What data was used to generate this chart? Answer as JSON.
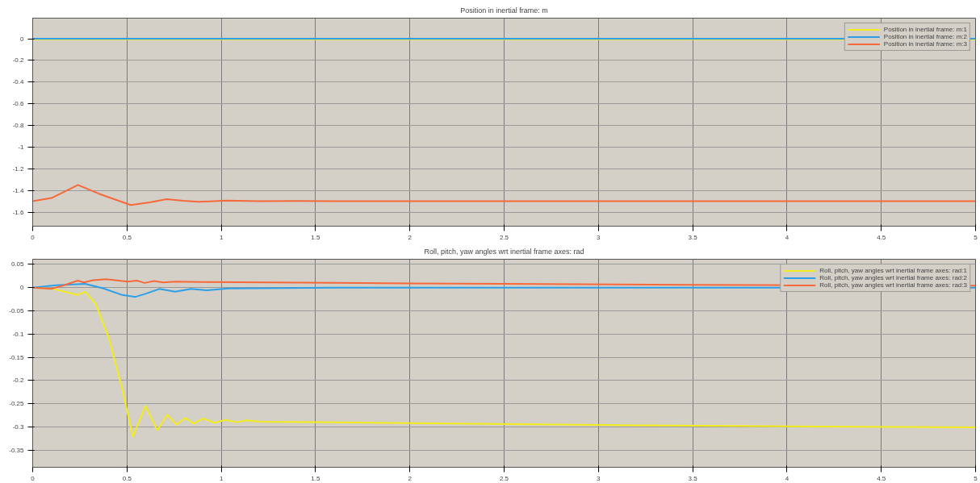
{
  "chart_data": [
    {
      "type": "line",
      "title": "Position in inertial frame: m",
      "xlim": [
        0,
        5
      ],
      "ylim": [
        -1.73,
        0.19
      ],
      "xticks": [
        0,
        0.5,
        1,
        1.5,
        2,
        2.5,
        3,
        3.5,
        4,
        4.5,
        5
      ],
      "yticks": [
        0,
        -0.2,
        -0.4,
        -0.6,
        -0.8,
        -1,
        -1.2,
        -1.4,
        -1.6
      ],
      "grid": true,
      "legend": "top right",
      "series": [
        {
          "name": "Position in inertial frame: m:1",
          "color": "#f2ec1a",
          "x": [
            0,
            5
          ],
          "values": [
            -0.005,
            -0.005
          ]
        },
        {
          "name": "Position in inertial frame: m:2",
          "color": "#2b9fe8",
          "x": [
            0,
            5
          ],
          "values": [
            0,
            0
          ]
        },
        {
          "name": "Position in inertial frame: m:3",
          "color": "#f7693a",
          "x": [
            0,
            0.1,
            0.24,
            0.35,
            0.52,
            0.62,
            0.71,
            0.8,
            0.88,
            1.03,
            1.2,
            1.4,
            1.6,
            2,
            3,
            4,
            5
          ],
          "values": [
            -1.5,
            -1.47,
            -1.35,
            -1.43,
            -1.535,
            -1.51,
            -1.48,
            -1.495,
            -1.505,
            -1.493,
            -1.5,
            -1.497,
            -1.5,
            -1.5,
            -1.5,
            -1.5,
            -1.5
          ]
        }
      ]
    },
    {
      "type": "line",
      "title": "Roll, pitch, yaw angles wrt inertial frame axes: rad",
      "xlim": [
        0,
        5
      ],
      "ylim": [
        -0.387,
        0.061
      ],
      "xticks": [
        0,
        0.5,
        1,
        1.5,
        2,
        2.5,
        3,
        3.5,
        4,
        4.5,
        5
      ],
      "yticks": [
        0.05,
        0,
        -0.05,
        -0.1,
        -0.15,
        -0.2,
        -0.25,
        -0.3,
        -0.35
      ],
      "grid": true,
      "legend": "top right",
      "series": [
        {
          "name": "Roll, pitch, yaw angles wrt inertial frame axes: rad:1",
          "color": "#f2ec1a",
          "x": [
            0,
            0.11,
            0.236,
            0.278,
            0.334,
            0.404,
            0.475,
            0.531,
            0.598,
            0.66,
            0.713,
            0.763,
            0.808,
            0.854,
            0.903,
            0.963,
            1.022,
            1.079,
            1.135,
            1.205,
            1.6,
            2,
            3,
            4,
            5
          ],
          "values": [
            0,
            -0.003,
            -0.016,
            -0.009,
            -0.035,
            -0.109,
            -0.219,
            -0.321,
            -0.255,
            -0.307,
            -0.274,
            -0.295,
            -0.281,
            -0.293,
            -0.282,
            -0.291,
            -0.285,
            -0.29,
            -0.286,
            -0.289,
            -0.29,
            -0.292,
            -0.296,
            -0.299,
            -0.301
          ]
        },
        {
          "name": "Roll, pitch, yaw angles wrt inertial frame axes: rad:2",
          "color": "#2b9fe8",
          "x": [
            0,
            0.124,
            0.278,
            0.376,
            0.475,
            0.545,
            0.601,
            0.671,
            0.756,
            0.84,
            0.924,
            1.037,
            1.32,
            1.6,
            5
          ],
          "values": [
            0,
            0.005,
            0.008,
            -0.002,
            -0.016,
            -0.02,
            -0.013,
            -0.003,
            -0.009,
            -0.003,
            -0.006,
            -0.002,
            -0.001,
            0,
            0
          ]
        },
        {
          "name": "Roll, pitch, yaw angles wrt inertial frame axes: rad:3",
          "color": "#f7693a",
          "x": [
            0,
            0.096,
            0.166,
            0.239,
            0.271,
            0.32,
            0.39,
            0.503,
            0.552,
            0.594,
            0.643,
            0.692,
            0.756,
            0.896,
            1.6,
            2.5,
            3.5,
            5
          ],
          "values": [
            0,
            -0.003,
            0.005,
            0.015,
            0.011,
            0.016,
            0.018,
            0.013,
            0.015,
            0.01,
            0.014,
            0.011,
            0.013,
            0.012,
            0.01,
            0.008,
            0.006,
            0.004
          ]
        }
      ]
    }
  ]
}
